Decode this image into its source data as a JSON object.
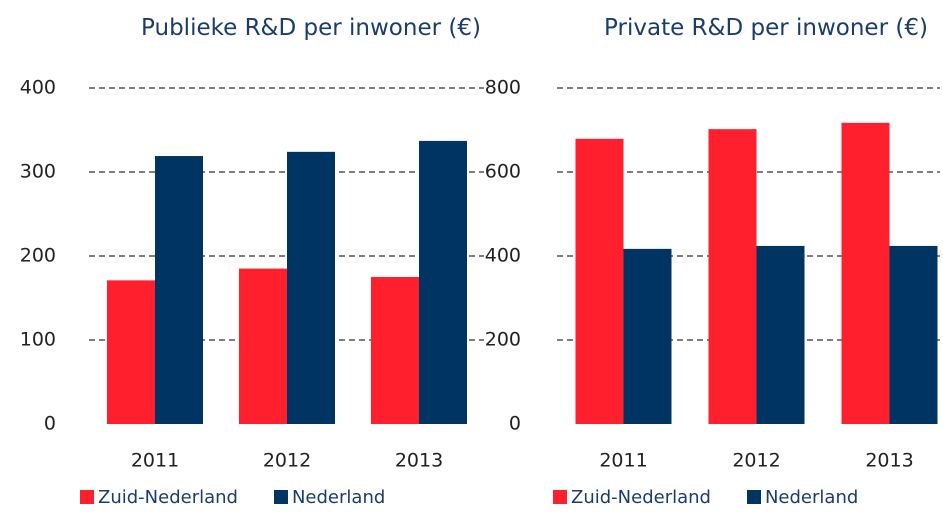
{
  "chart_data": [
    {
      "type": "bar",
      "title": "Publieke R&D per inwoner (€)",
      "categories": [
        "2011",
        "2012",
        "2013"
      ],
      "series": [
        {
          "name": "Zuid-Nederland",
          "color": "#ff1f2d",
          "values": [
            171,
            185,
            175
          ]
        },
        {
          "name": "Nederland",
          "color": "#003462",
          "values": [
            319,
            324,
            337
          ]
        }
      ],
      "ylim": [
        0,
        400
      ],
      "yticks": [
        0,
        100,
        200,
        300,
        400
      ],
      "grid": true,
      "legend": "bottom"
    },
    {
      "type": "bar",
      "title": "Private R&D per inwoner (€)",
      "categories": [
        "2011",
        "2012",
        "2013"
      ],
      "series": [
        {
          "name": "Zuid-Nederland",
          "color": "#ff1f2d",
          "values": [
            679,
            702,
            717
          ]
        },
        {
          "name": "Nederland",
          "color": "#003462",
          "values": [
            417,
            424,
            424
          ]
        }
      ],
      "ylim": [
        0,
        800
      ],
      "yticks": [
        0,
        200,
        400,
        600,
        800
      ],
      "grid": true,
      "legend": "bottom"
    }
  ]
}
